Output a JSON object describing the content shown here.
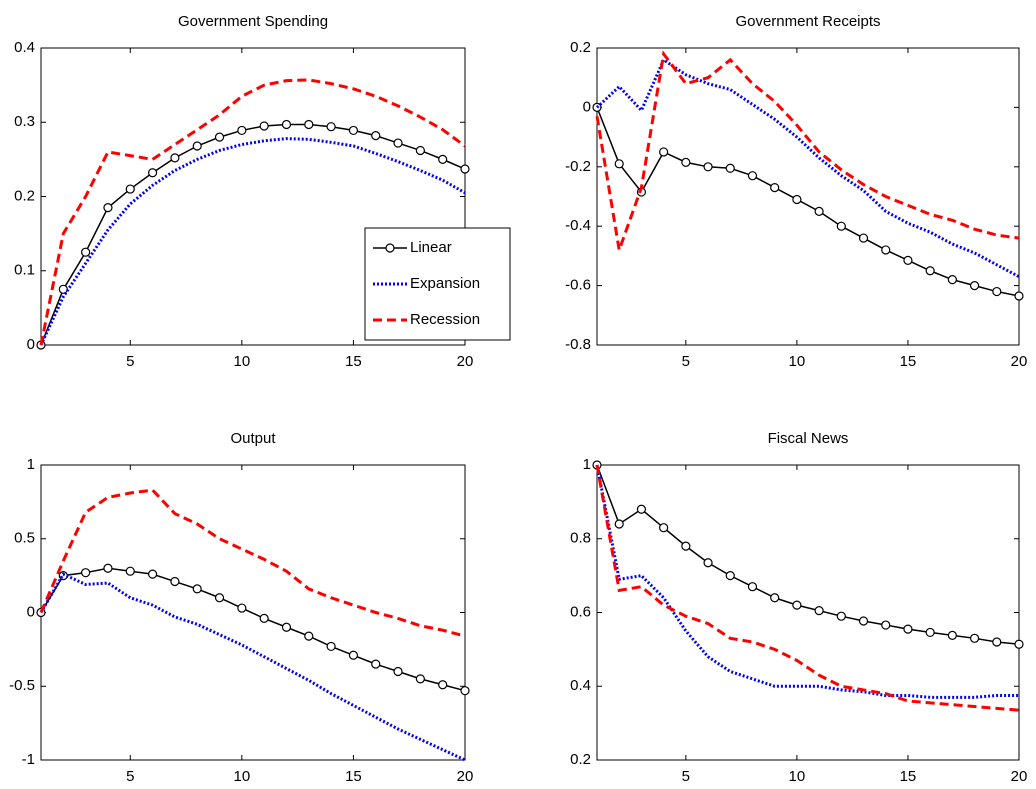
{
  "chart_data": [
    {
      "type": "line",
      "title": "Government Spending",
      "x": [
        1,
        2,
        3,
        4,
        5,
        6,
        7,
        8,
        9,
        10,
        11,
        12,
        13,
        14,
        15,
        16,
        17,
        18,
        19,
        20
      ],
      "xlim": [
        1,
        20
      ],
      "xticks": [
        5,
        10,
        15,
        20
      ],
      "ylim": [
        0,
        0.4
      ],
      "yticks": [
        0,
        0.1,
        0.2,
        0.3,
        0.4
      ],
      "legend": "lower right",
      "series": [
        {
          "name": "Linear",
          "color": "#000000",
          "style": "solid-marker",
          "values": [
            0,
            0.075,
            0.125,
            0.185,
            0.21,
            0.232,
            0.252,
            0.268,
            0.28,
            0.289,
            0.295,
            0.297,
            0.297,
            0.294,
            0.289,
            0.282,
            0.272,
            0.262,
            0.25,
            0.237
          ]
        },
        {
          "name": "Expansion",
          "color": "#0000ff",
          "style": "dotted",
          "values": [
            0,
            0.065,
            0.11,
            0.155,
            0.19,
            0.215,
            0.235,
            0.25,
            0.262,
            0.27,
            0.275,
            0.278,
            0.277,
            0.273,
            0.268,
            0.258,
            0.247,
            0.235,
            0.222,
            0.205
          ]
        },
        {
          "name": "Recession",
          "color": "#ff0000",
          "style": "dashed",
          "values": [
            0,
            0.15,
            0.2,
            0.26,
            0.255,
            0.25,
            0.27,
            0.29,
            0.31,
            0.335,
            0.35,
            0.356,
            0.357,
            0.352,
            0.345,
            0.335,
            0.322,
            0.307,
            0.29,
            0.268
          ]
        }
      ]
    },
    {
      "type": "line",
      "title": "Government Receipts",
      "x": [
        1,
        2,
        3,
        4,
        5,
        6,
        7,
        8,
        9,
        10,
        11,
        12,
        13,
        14,
        15,
        16,
        17,
        18,
        19,
        20
      ],
      "xlim": [
        1,
        20
      ],
      "xticks": [
        5,
        10,
        15,
        20
      ],
      "ylim": [
        -0.8,
        0.2
      ],
      "yticks": [
        -0.8,
        -0.6,
        -0.4,
        -0.2,
        0,
        0.2
      ],
      "series": [
        {
          "color": "#000000",
          "style": "solid-marker",
          "values": [
            0,
            -0.19,
            -0.285,
            -0.15,
            -0.185,
            -0.2,
            -0.205,
            -0.23,
            -0.27,
            -0.31,
            -0.35,
            -0.4,
            -0.44,
            -0.48,
            -0.515,
            -0.55,
            -0.58,
            -0.6,
            -0.62,
            -0.635
          ]
        },
        {
          "color": "#0000ff",
          "style": "dotted",
          "values": [
            0,
            0.07,
            -0.01,
            0.16,
            0.11,
            0.08,
            0.06,
            0.01,
            -0.04,
            -0.1,
            -0.17,
            -0.23,
            -0.28,
            -0.35,
            -0.39,
            -0.42,
            -0.46,
            -0.49,
            -0.53,
            -0.57
          ]
        },
        {
          "color": "#ff0000",
          "style": "dashed",
          "values": [
            -0.03,
            -0.48,
            -0.27,
            0.18,
            0.08,
            0.1,
            0.16,
            0.08,
            0.02,
            -0.06,
            -0.15,
            -0.21,
            -0.26,
            -0.3,
            -0.33,
            -0.36,
            -0.38,
            -0.41,
            -0.43,
            -0.44
          ]
        }
      ]
    },
    {
      "type": "line",
      "title": "Output",
      "x": [
        1,
        2,
        3,
        4,
        5,
        6,
        7,
        8,
        9,
        10,
        11,
        12,
        13,
        14,
        15,
        16,
        17,
        18,
        19,
        20
      ],
      "xlim": [
        1,
        20
      ],
      "xticks": [
        5,
        10,
        15,
        20
      ],
      "ylim": [
        -1,
        1
      ],
      "yticks": [
        -1,
        -0.5,
        0,
        0.5,
        1
      ],
      "series": [
        {
          "color": "#000000",
          "style": "solid-marker",
          "values": [
            0,
            0.25,
            0.27,
            0.3,
            0.28,
            0.26,
            0.21,
            0.16,
            0.1,
            0.03,
            -0.04,
            -0.1,
            -0.16,
            -0.23,
            -0.29,
            -0.35,
            -0.4,
            -0.45,
            -0.49,
            -0.53
          ]
        },
        {
          "color": "#0000ff",
          "style": "dotted",
          "values": [
            0,
            0.26,
            0.19,
            0.2,
            0.1,
            0.05,
            -0.03,
            -0.08,
            -0.15,
            -0.22,
            -0.3,
            -0.38,
            -0.46,
            -0.55,
            -0.63,
            -0.71,
            -0.79,
            -0.86,
            -0.93,
            -1.0
          ]
        },
        {
          "color": "#ff0000",
          "style": "dashed",
          "values": [
            0,
            0.35,
            0.68,
            0.78,
            0.81,
            0.83,
            0.67,
            0.6,
            0.5,
            0.43,
            0.36,
            0.28,
            0.16,
            0.1,
            0.05,
            0,
            -0.04,
            -0.09,
            -0.12,
            -0.16
          ]
        }
      ]
    },
    {
      "type": "line",
      "title": "Fiscal News",
      "x": [
        1,
        2,
        3,
        4,
        5,
        6,
        7,
        8,
        9,
        10,
        11,
        12,
        13,
        14,
        15,
        16,
        17,
        18,
        19,
        20
      ],
      "xlim": [
        1,
        20
      ],
      "xticks": [
        5,
        10,
        15,
        20
      ],
      "ylim": [
        0.2,
        1
      ],
      "yticks": [
        0.2,
        0.4,
        0.6,
        0.8,
        1
      ],
      "series": [
        {
          "color": "#000000",
          "style": "solid-marker",
          "values": [
            1.0,
            0.84,
            0.88,
            0.83,
            0.78,
            0.735,
            0.7,
            0.67,
            0.64,
            0.62,
            0.605,
            0.59,
            0.577,
            0.566,
            0.555,
            0.546,
            0.538,
            0.53,
            0.52,
            0.514
          ]
        },
        {
          "color": "#0000ff",
          "style": "dotted",
          "values": [
            1.0,
            0.69,
            0.7,
            0.64,
            0.55,
            0.48,
            0.44,
            0.42,
            0.4,
            0.4,
            0.4,
            0.39,
            0.385,
            0.375,
            0.375,
            0.37,
            0.37,
            0.37,
            0.375,
            0.375
          ]
        },
        {
          "color": "#ff0000",
          "style": "dashed",
          "values": [
            1.0,
            0.66,
            0.67,
            0.62,
            0.59,
            0.57,
            0.53,
            0.52,
            0.5,
            0.47,
            0.43,
            0.4,
            0.39,
            0.38,
            0.36,
            0.355,
            0.35,
            0.345,
            0.34,
            0.335
          ]
        }
      ]
    }
  ]
}
